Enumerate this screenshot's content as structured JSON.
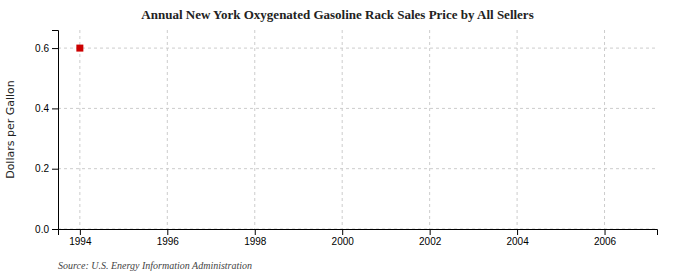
{
  "chart_data": {
    "type": "scatter",
    "title": "Annual New York Oxygenated Gasoline Rack Sales Price by All Sellers",
    "y_label": "Dollars per Gallon",
    "annotations": [
      "Source: U.S. Energy Information Administration"
    ],
    "x": [
      1994
    ],
    "values": [
      0.6
    ],
    "color": "#cc0000",
    "marker": "square",
    "xlim": [
      1993.5,
      2007.2
    ],
    "ylim": [
      0.0,
      0.66
    ],
    "xticks": [
      1994,
      1996,
      1998,
      2000,
      2002,
      2004,
      2006
    ],
    "yticks": [
      {
        "value": 0.0,
        "label": "0.0"
      },
      0.2,
      0.4,
      0.6
    ],
    "grid": true
  }
}
